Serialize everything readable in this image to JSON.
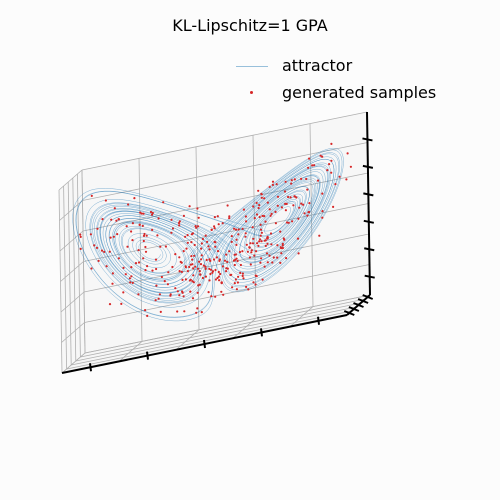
{
  "chart_data": {
    "type": "scatter",
    "title": "KL-Lipschitz=1 GPA",
    "projection": "3d",
    "grid": true,
    "legend_position": "top-right",
    "legend": [
      "attractor",
      "generated samples"
    ],
    "series": [
      {
        "name": "attractor",
        "kind": "line",
        "color": "#1f77b4",
        "data": "Lorenz attractor trajectory (sigma=10, rho=28, beta=8/3)"
      },
      {
        "name": "generated samples",
        "kind": "scatter",
        "color": "#d62728",
        "count": 400
      }
    ],
    "lorenz_params": {
      "sigma": 10,
      "rho": 28,
      "beta": 2.6667
    },
    "xlim": [
      -20,
      20
    ],
    "ylim": [
      -25,
      25
    ],
    "zlim": [
      0,
      50
    ],
    "xticklabels": [],
    "yticklabels": [],
    "zticklabels": []
  }
}
